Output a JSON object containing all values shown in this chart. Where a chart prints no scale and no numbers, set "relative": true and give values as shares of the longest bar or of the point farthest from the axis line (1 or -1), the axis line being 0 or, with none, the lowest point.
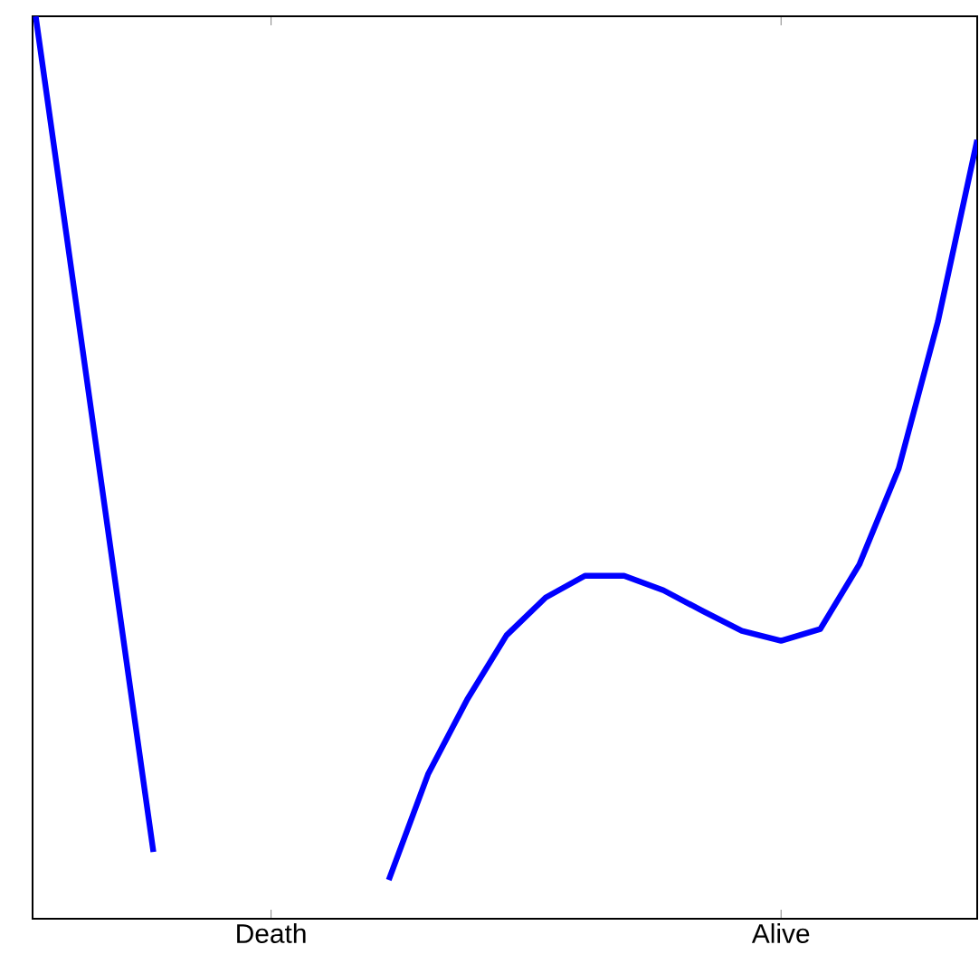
{
  "chart_data": {
    "type": "line",
    "relative": true,
    "categories": [
      null,
      null,
      null,
      null,
      null,
      null,
      "Death",
      null,
      null,
      null,
      null,
      null,
      null,
      null,
      null,
      null,
      null,
      null,
      null,
      "Alive",
      null,
      null,
      null,
      null,
      null
    ],
    "series": [
      {
        "color": "#0000ff",
        "values": [
          1.0,
          0.691,
          0.382,
          0.074,
          null,
          null,
          null,
          null,
          null,
          0.043,
          0.16,
          0.243,
          0.314,
          0.356,
          0.38,
          0.38,
          0.364,
          0.341,
          0.319,
          0.308,
          0.321,
          0.393,
          0.499,
          0.662,
          0.863
        ]
      }
    ],
    "marker": "none",
    "line_style": "solid"
  }
}
